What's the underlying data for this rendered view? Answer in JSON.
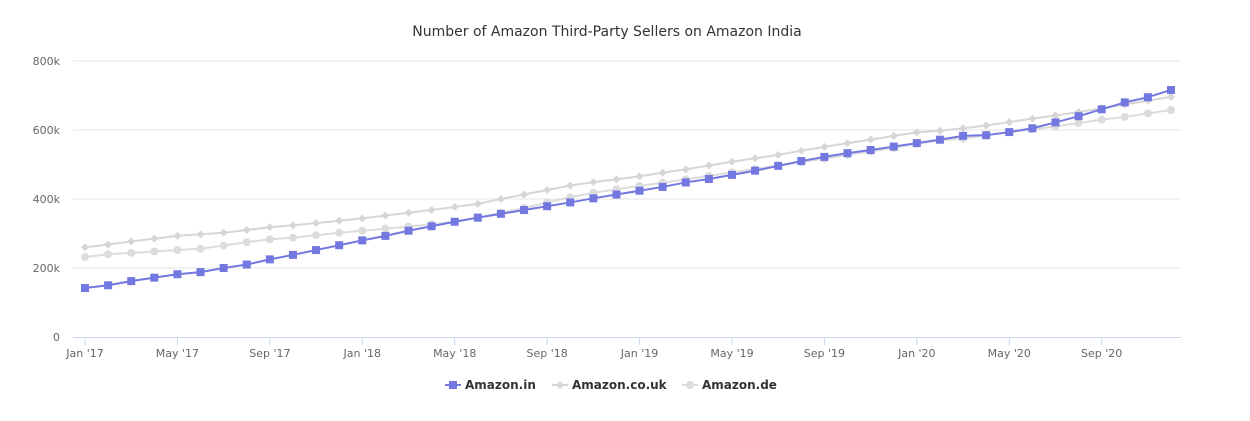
{
  "chart_data": {
    "type": "line",
    "title": "Number of Amazon Third-Party Sellers on Amazon India",
    "xlabel": "",
    "ylabel": "",
    "ylim": [
      0,
      800000
    ],
    "y_ticks": [
      0,
      200000,
      400000,
      600000,
      800000
    ],
    "y_tick_labels": [
      "0",
      "200k",
      "400k",
      "600k",
      "800k"
    ],
    "x_tick_labels": [
      "Jan '17",
      "May '17",
      "Sep '17",
      "Jan '18",
      "May '18",
      "Sep '18",
      "Jan '19",
      "May '19",
      "Sep '19",
      "Jan '20",
      "May '20",
      "Sep '20"
    ],
    "x_tick_step": 4,
    "months": 48,
    "grid": true,
    "legend_position": "bottom",
    "series": [
      {
        "name": "Amazon.in",
        "color": "#7378e0",
        "marker": "square",
        "values": [
          142000,
          150000,
          162000,
          172000,
          182000,
          188000,
          200000,
          210000,
          225000,
          238000,
          252000,
          266000,
          280000,
          293000,
          308000,
          321000,
          334000,
          346000,
          357000,
          368000,
          379000,
          390000,
          402000,
          413000,
          424000,
          435000,
          448000,
          458000,
          470000,
          482000,
          496000,
          510000,
          522000,
          533000,
          542000,
          552000,
          562000,
          572000,
          583000,
          585000,
          594000,
          605000,
          622000,
          640000,
          660000,
          680000,
          695000,
          716000
        ]
      },
      {
        "name": "Amazon.co.uk",
        "color": "#d6d6d6",
        "marker": "diamond",
        "values": [
          260000,
          268000,
          277000,
          285000,
          293000,
          298000,
          302000,
          310000,
          318000,
          324000,
          330000,
          337000,
          344000,
          352000,
          360000,
          368000,
          377000,
          386000,
          400000,
          413000,
          426000,
          439000,
          449000,
          457000,
          466000,
          476000,
          486000,
          497000,
          508000,
          518000,
          528000,
          540000,
          551000,
          562000,
          572000,
          583000,
          593000,
          598000,
          605000,
          613000,
          623000,
          633000,
          642000,
          652000,
          663000,
          674000,
          685000,
          696000
        ]
      },
      {
        "name": "Amazon.de",
        "color": "#dcdcdc",
        "marker": "circle",
        "values": [
          232000,
          240000,
          244000,
          248000,
          252000,
          256000,
          265000,
          275000,
          283000,
          288000,
          295000,
          302000,
          308000,
          314000,
          320000,
          327000,
          334000,
          346000,
          360000,
          374000,
          390000,
          405000,
          418000,
          428000,
          438000,
          447000,
          457000,
          467000,
          477000,
          487000,
          497000,
          507000,
          517000,
          528000,
          538000,
          548000,
          560000,
          570000,
          575000,
          584000,
          594000,
          602000,
          610000,
          620000,
          630000,
          638000,
          648000,
          658000
        ]
      }
    ]
  }
}
